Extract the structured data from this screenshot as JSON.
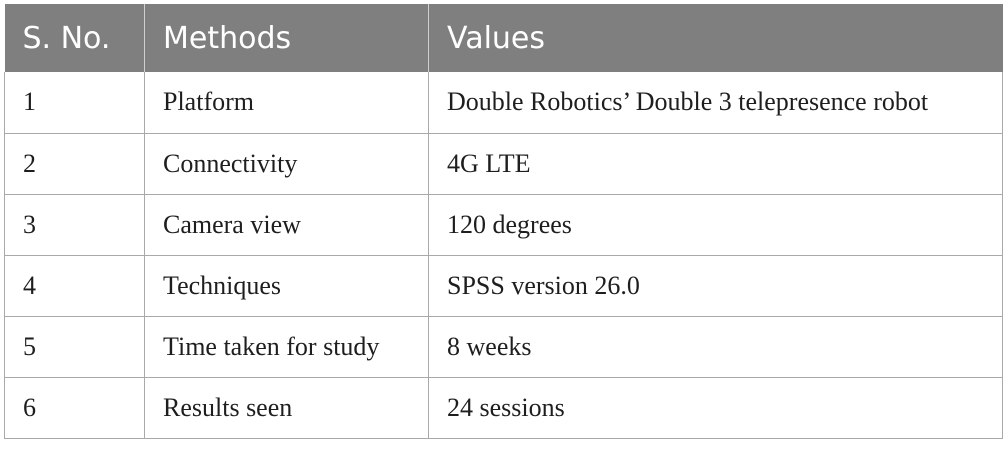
{
  "table": {
    "headers": [
      "S. No.",
      "Methods",
      "Values"
    ],
    "rows": [
      [
        "1",
        "Platform",
        "Double Robotics’ Double 3 telepresence robot"
      ],
      [
        "2",
        "Connectivity",
        "4G LTE"
      ],
      [
        "3",
        "Camera view",
        "120 degrees"
      ],
      [
        "4",
        "Techniques",
        "SPSS version 26.0"
      ],
      [
        "5",
        "Time taken for study",
        "8 weeks"
      ],
      [
        "6",
        "Results seen",
        "24 sessions"
      ]
    ]
  }
}
